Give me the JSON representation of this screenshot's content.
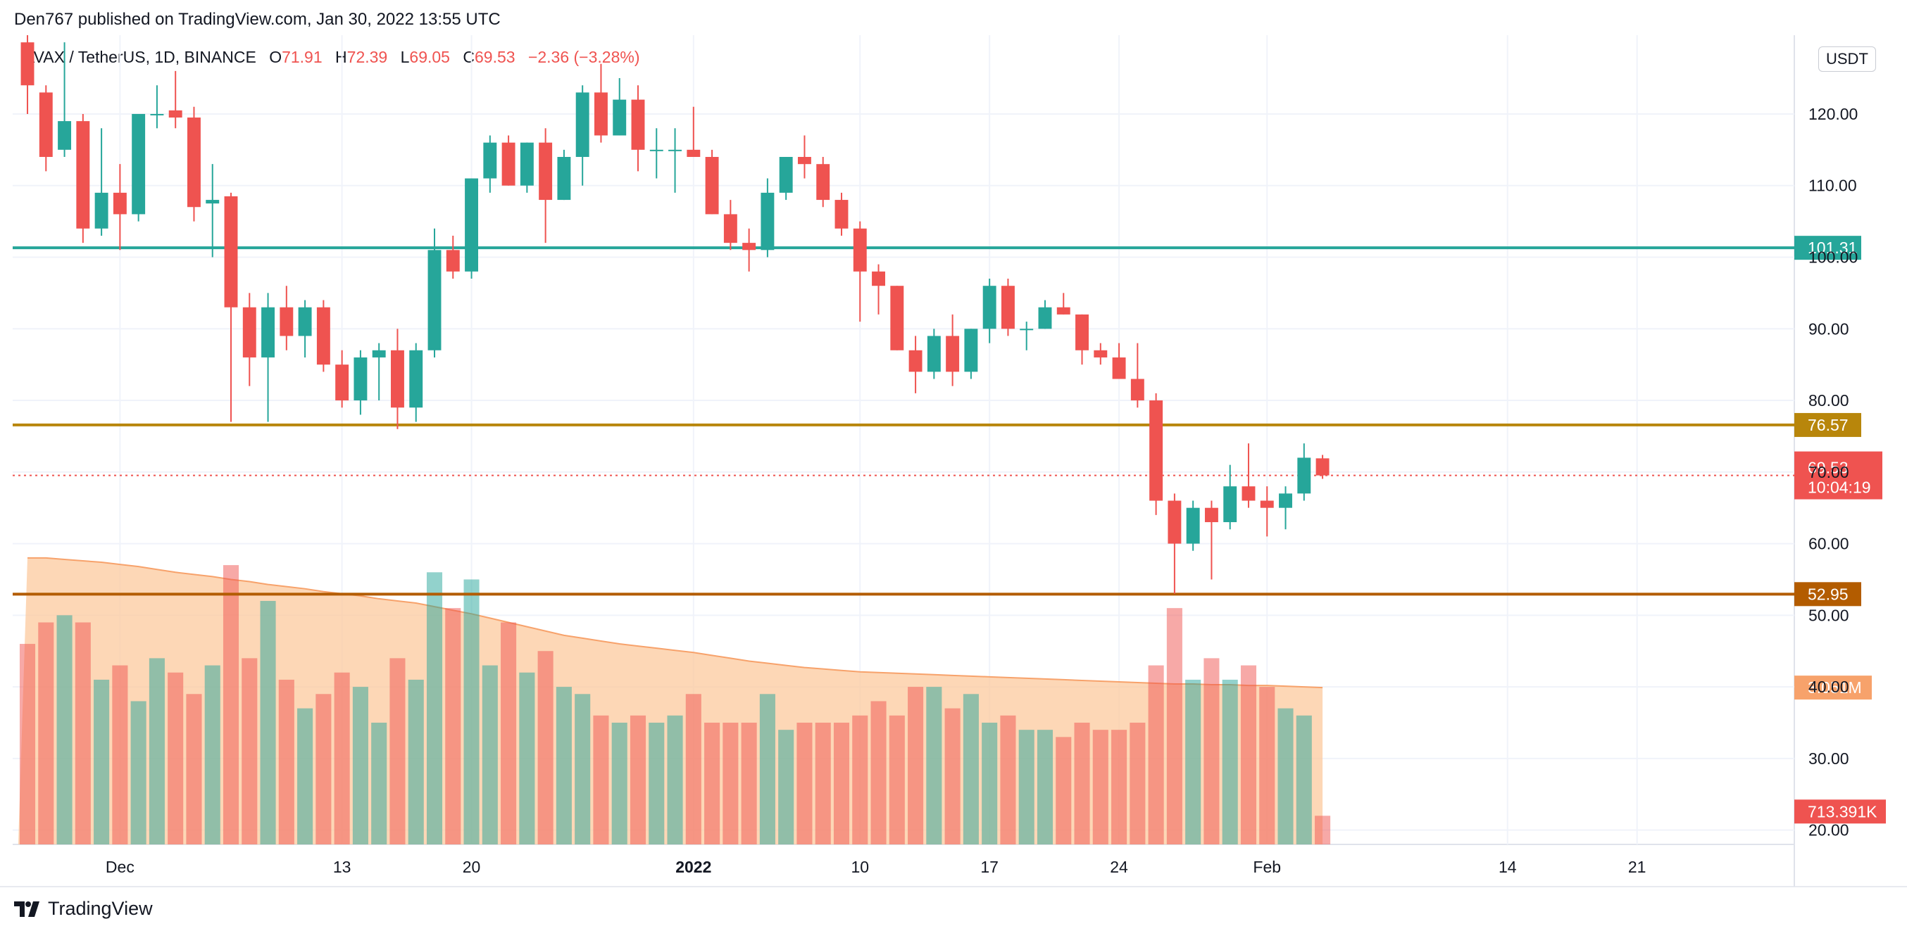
{
  "header": {
    "published": "Den767 published on TradingView.com, Jan 30, 2022 13:55 UTC"
  },
  "legend": {
    "symbol": "AVAX / TetherUS, 1D, BINANCE",
    "open_label": "O",
    "open": "71.91",
    "high_label": "H",
    "high": "72.39",
    "low_label": "L",
    "low": "69.05",
    "close_label": "C",
    "close": "69.53",
    "change": "−2.36 (−3.28%)"
  },
  "currency": "USDT",
  "brand": {
    "name": "TradingView"
  },
  "colors": {
    "up": "#26a69a",
    "down": "#ef5350",
    "support_green": "#26a69a",
    "level_gold": "#b8860b",
    "level_brown": "#b35c00",
    "volume_ma": "#f7a26b"
  },
  "chart_data": {
    "type": "candlestick",
    "price_ticks": [
      "120.00",
      "110.00",
      "100.00",
      "90.00",
      "80.00",
      "70.00",
      "60.00",
      "50.00",
      "40.00",
      "30.00",
      "20.00"
    ],
    "price_tick_values": [
      120,
      110,
      100,
      90,
      80,
      70,
      60,
      50,
      40,
      30,
      20
    ],
    "y_range": [
      18,
      131
    ],
    "x_ticks": [
      "Dec",
      "13",
      "20",
      "2022",
      "10",
      "17",
      "24",
      "Feb",
      "14",
      "21"
    ],
    "x_tick_days": [
      5,
      17,
      24,
      36,
      45,
      52,
      59,
      67,
      80,
      87
    ],
    "x_range_days": [
      -0.8,
      95.5
    ],
    "horizontal_levels": [
      {
        "value": 101.31,
        "label": "101.31",
        "color": "#26a69a"
      },
      {
        "value": 76.57,
        "label": "76.57",
        "color": "#b8860b"
      },
      {
        "value": 52.95,
        "label": "52.95",
        "color": "#b35c00"
      }
    ],
    "last_price": {
      "value": 69.53,
      "label": "69.53",
      "countdown": "10:04:19"
    },
    "volume_labels": {
      "ma": "3.051M",
      "current": "713.391K"
    },
    "candles": [
      {
        "o": 130,
        "h": 131,
        "l": 120,
        "c": 124
      },
      {
        "o": 123,
        "h": 124,
        "l": 112,
        "c": 114
      },
      {
        "o": 115,
        "h": 130,
        "l": 114,
        "c": 119
      },
      {
        "o": 119,
        "h": 120,
        "l": 102,
        "c": 104
      },
      {
        "o": 104,
        "h": 118,
        "l": 103,
        "c": 109
      },
      {
        "o": 109,
        "h": 113,
        "l": 101,
        "c": 106
      },
      {
        "o": 106,
        "h": 120,
        "l": 105,
        "c": 120
      },
      {
        "o": 120,
        "h": 124,
        "l": 118,
        "c": 120
      },
      {
        "o": 120.5,
        "h": 126,
        "l": 118,
        "c": 119.5
      },
      {
        "o": 119.5,
        "h": 121,
        "l": 105,
        "c": 107
      },
      {
        "o": 107.5,
        "h": 113,
        "l": 100,
        "c": 108
      },
      {
        "o": 108.5,
        "h": 109,
        "l": 77,
        "c": 93
      },
      {
        "o": 93,
        "h": 95,
        "l": 82,
        "c": 86
      },
      {
        "o": 86,
        "h": 95,
        "l": 77,
        "c": 93
      },
      {
        "o": 93,
        "h": 96,
        "l": 87,
        "c": 89
      },
      {
        "o": 89,
        "h": 94,
        "l": 86,
        "c": 93
      },
      {
        "o": 93,
        "h": 94,
        "l": 84,
        "c": 85
      },
      {
        "o": 85,
        "h": 87,
        "l": 79,
        "c": 80
      },
      {
        "o": 80,
        "h": 87,
        "l": 78,
        "c": 86
      },
      {
        "o": 86,
        "h": 88,
        "l": 80,
        "c": 87
      },
      {
        "o": 87,
        "h": 90,
        "l": 76,
        "c": 79
      },
      {
        "o": 79,
        "h": 88,
        "l": 77,
        "c": 87
      },
      {
        "o": 87,
        "h": 104,
        "l": 86,
        "c": 101
      },
      {
        "o": 101,
        "h": 103,
        "l": 97,
        "c": 98
      },
      {
        "o": 98,
        "h": 111,
        "l": 97,
        "c": 111
      },
      {
        "o": 111,
        "h": 117,
        "l": 109,
        "c": 116
      },
      {
        "o": 116,
        "h": 117,
        "l": 110,
        "c": 110
      },
      {
        "o": 110,
        "h": 116,
        "l": 109,
        "c": 116
      },
      {
        "o": 116,
        "h": 118,
        "l": 102,
        "c": 108
      },
      {
        "o": 108,
        "h": 115,
        "l": 108,
        "c": 114
      },
      {
        "o": 114,
        "h": 124,
        "l": 110,
        "c": 123
      },
      {
        "o": 123,
        "h": 127,
        "l": 116,
        "c": 117
      },
      {
        "o": 117,
        "h": 125,
        "l": 117,
        "c": 122
      },
      {
        "o": 122,
        "h": 124,
        "l": 112,
        "c": 115
      },
      {
        "o": 115,
        "h": 118,
        "l": 111,
        "c": 115
      },
      {
        "o": 115,
        "h": 118,
        "l": 109,
        "c": 115
      },
      {
        "o": 115,
        "h": 121,
        "l": 114,
        "c": 114
      },
      {
        "o": 114,
        "h": 115,
        "l": 106,
        "c": 106
      },
      {
        "o": 106,
        "h": 108,
        "l": 101,
        "c": 102
      },
      {
        "o": 102,
        "h": 104,
        "l": 98,
        "c": 101
      },
      {
        "o": 101,
        "h": 111,
        "l": 100,
        "c": 109
      },
      {
        "o": 109,
        "h": 114,
        "l": 108,
        "c": 114
      },
      {
        "o": 114,
        "h": 117,
        "l": 111,
        "c": 113
      },
      {
        "o": 113,
        "h": 114,
        "l": 107,
        "c": 108
      },
      {
        "o": 108,
        "h": 109,
        "l": 103,
        "c": 104
      },
      {
        "o": 104,
        "h": 105,
        "l": 91,
        "c": 98
      },
      {
        "o": 98,
        "h": 99,
        "l": 92,
        "c": 96
      },
      {
        "o": 96,
        "h": 96,
        "l": 87,
        "c": 87
      },
      {
        "o": 87,
        "h": 89,
        "l": 81,
        "c": 84
      },
      {
        "o": 84,
        "h": 90,
        "l": 83,
        "c": 89
      },
      {
        "o": 89,
        "h": 92,
        "l": 82,
        "c": 84
      },
      {
        "o": 84,
        "h": 90,
        "l": 83,
        "c": 90
      },
      {
        "o": 90,
        "h": 97,
        "l": 88,
        "c": 96
      },
      {
        "o": 96,
        "h": 97,
        "l": 89,
        "c": 90
      },
      {
        "o": 90,
        "h": 91,
        "l": 87,
        "c": 90
      },
      {
        "o": 90,
        "h": 94,
        "l": 90,
        "c": 93
      },
      {
        "o": 93,
        "h": 95,
        "l": 92,
        "c": 92
      },
      {
        "o": 92,
        "h": 92,
        "l": 85,
        "c": 87
      },
      {
        "o": 87,
        "h": 88,
        "l": 85,
        "c": 86
      },
      {
        "o": 86,
        "h": 88,
        "l": 83,
        "c": 83
      },
      {
        "o": 83,
        "h": 88,
        "l": 79,
        "c": 80
      },
      {
        "o": 80,
        "h": 81,
        "l": 64,
        "c": 66
      },
      {
        "o": 66,
        "h": 67,
        "l": 53,
        "c": 60
      },
      {
        "o": 60,
        "h": 66,
        "l": 59,
        "c": 65
      },
      {
        "o": 65,
        "h": 66,
        "l": 55,
        "c": 63
      },
      {
        "o": 63,
        "h": 71,
        "l": 62,
        "c": 68
      },
      {
        "o": 68,
        "h": 74,
        "l": 65,
        "c": 66
      },
      {
        "o": 66,
        "h": 68,
        "l": 61,
        "c": 65
      },
      {
        "o": 65,
        "h": 68,
        "l": 62,
        "c": 67
      },
      {
        "o": 67,
        "h": 74,
        "l": 66,
        "c": 72
      },
      {
        "o": 71.91,
        "h": 72.39,
        "l": 69.05,
        "c": 69.53
      }
    ],
    "volume": [
      46,
      49,
      50,
      49,
      41,
      43,
      38,
      44,
      42,
      39,
      43,
      57,
      44,
      52,
      41,
      37,
      39,
      42,
      40,
      35,
      44,
      41,
      56,
      51,
      55,
      43,
      49,
      42,
      45,
      40,
      39,
      36,
      35,
      36,
      35,
      36,
      39,
      35,
      35,
      35,
      39,
      34,
      35,
      35,
      35,
      36,
      38,
      36,
      40,
      40,
      37,
      39,
      35,
      36,
      34,
      34,
      33,
      35,
      34,
      34,
      35,
      43,
      51,
      41,
      44,
      41,
      43,
      40,
      37,
      36,
      22
    ],
    "volume_ma": [
      58,
      58,
      57.8,
      57.6,
      57.4,
      57.1,
      56.8,
      56.4,
      56,
      55.7,
      55.4,
      55,
      54.7,
      54.3,
      54,
      53.7,
      53.3,
      53,
      52.7,
      52.3,
      52,
      51.7,
      51.2,
      50.7,
      50.2,
      49.6,
      49,
      48.4,
      47.8,
      47.2,
      46.8,
      46.4,
      46,
      45.7,
      45.4,
      45.1,
      44.8,
      44.4,
      44,
      43.6,
      43.3,
      43,
      42.7,
      42.5,
      42.3,
      42.1,
      42,
      41.9,
      41.8,
      41.7,
      41.6,
      41.5,
      41.4,
      41.3,
      41.2,
      41.1,
      41,
      40.9,
      40.8,
      40.7,
      40.6,
      40.5,
      40.4,
      40.4,
      40.3,
      40.3,
      40.2,
      40.2,
      40.1,
      40,
      39.9
    ]
  }
}
